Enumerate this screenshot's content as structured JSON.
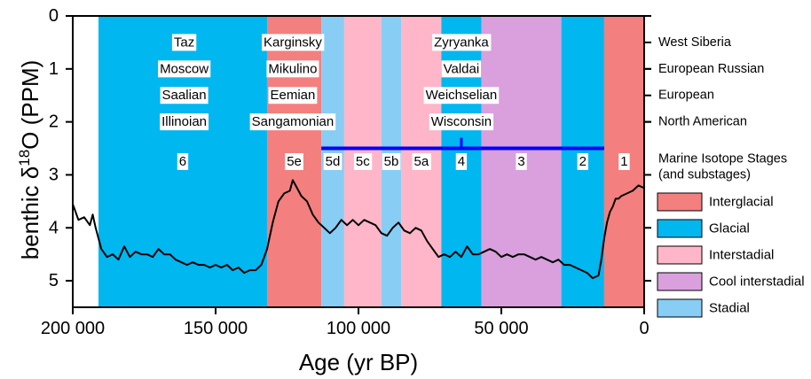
{
  "chart_data": {
    "type": "line",
    "xlabel": "Age (yr BP)",
    "ylabel_main": "benthic δ",
    "ylabel_sup": "18",
    "ylabel_rest": "O (PPM)",
    "xlim": [
      200000,
      0
    ],
    "ylim": [
      0,
      5.5
    ],
    "x_ticks": [
      {
        "value": 200000,
        "label": "200 000"
      },
      {
        "value": 150000,
        "label": "150 000"
      },
      {
        "value": 100000,
        "label": "100 000"
      },
      {
        "value": 50000,
        "label": "50 000"
      },
      {
        "value": 0,
        "label": "0"
      }
    ],
    "y_ticks": [
      {
        "value": 0,
        "label": "0"
      },
      {
        "value": 1,
        "label": "1"
      },
      {
        "value": 2,
        "label": "2"
      },
      {
        "value": 3,
        "label": "3"
      },
      {
        "value": 4,
        "label": "4"
      },
      {
        "value": 5,
        "label": "5"
      }
    ],
    "colors": {
      "interglacial": "#f47f7f",
      "glacial": "#00b7f0",
      "interstadial": "#ffb6c8",
      "cool_interstadial": "#d9a0dd",
      "stadial": "#87cdf4",
      "line": "#000000",
      "mis_bar": "#0000ff"
    },
    "bands": [
      {
        "start": 191000,
        "end": 132000,
        "kind": "glacial",
        "label": "6"
      },
      {
        "start": 132000,
        "end": 113000,
        "kind": "interglacial",
        "label": "5e"
      },
      {
        "start": 113000,
        "end": 105000,
        "kind": "stadial",
        "label": "5d"
      },
      {
        "start": 105000,
        "end": 92000,
        "kind": "interstadial",
        "label": "5c"
      },
      {
        "start": 92000,
        "end": 85000,
        "kind": "stadial",
        "label": "5b"
      },
      {
        "start": 85000,
        "end": 71000,
        "kind": "interstadial",
        "label": "5a"
      },
      {
        "start": 71000,
        "end": 57000,
        "kind": "glacial",
        "label": "4"
      },
      {
        "start": 57000,
        "end": 29000,
        "kind": "cool_interstadial",
        "label": "3"
      },
      {
        "start": 29000,
        "end": 14000,
        "kind": "glacial",
        "label": "2"
      },
      {
        "start": 14000,
        "end": 0,
        "kind": "interglacial",
        "label": "1"
      }
    ],
    "band_label_y": 2.75,
    "mis_bar": {
      "start": 113000,
      "end": 14000,
      "y": 2.5,
      "tick_x": 64000,
      "tick_top": 2.3
    },
    "stage_names": [
      {
        "x": 161000,
        "names": [
          "Taz",
          "Moscow",
          "Saalian",
          "Illinoian"
        ]
      },
      {
        "x": 123000,
        "names": [
          "Karginsky",
          "Mikulino",
          "Eemian",
          "Sangamonian"
        ]
      },
      {
        "x": 64000,
        "names": [
          "Zyryanka",
          "Valdai",
          "Weichselian",
          "Wisconsin"
        ]
      }
    ],
    "stage_rows_y": [
      0.5,
      1.0,
      1.5,
      2.0
    ],
    "right_labels": [
      {
        "y": 0.5,
        "text": "West Siberia"
      },
      {
        "y": 1.0,
        "text": "European Russian"
      },
      {
        "y": 1.5,
        "text": "European"
      },
      {
        "y": 2.0,
        "text": "North American"
      },
      {
        "y": 2.7,
        "text": "Marine Isotope Stages"
      },
      {
        "y": 3.0,
        "text": "(and substages)"
      }
    ],
    "legend": [
      {
        "kind": "interglacial",
        "label": "Interglacial"
      },
      {
        "kind": "glacial",
        "label": "Glacial"
      },
      {
        "kind": "interstadial",
        "label": "Interstadial"
      },
      {
        "kind": "cool_interstadial",
        "label": "Cool interstadial"
      },
      {
        "kind": "stadial",
        "label": "Stadial"
      }
    ],
    "series": [
      {
        "x": [
          200000,
          198000,
          196000,
          194000,
          193000,
          192000,
          191000,
          190000,
          188000,
          186000,
          184000,
          182000,
          180000,
          178000,
          176000,
          174000,
          172000,
          170000,
          168000,
          166000,
          164000,
          162000,
          160000,
          158000,
          156000,
          154000,
          152000,
          150000,
          148000,
          146000,
          144000,
          142000,
          140000,
          138000,
          136000,
          134000,
          132000,
          130000,
          128000,
          126000,
          124000,
          123000,
          122000,
          120000,
          118000,
          116000,
          114000,
          112000,
          110000,
          108000,
          106000,
          104000,
          102000,
          100000,
          98000,
          96000,
          94000,
          92000,
          90000,
          88000,
          86000,
          84000,
          82000,
          80000,
          78000,
          76000,
          74000,
          72000,
          70000,
          68000,
          66000,
          64000,
          62000,
          60000,
          58000,
          56000,
          54000,
          52000,
          50000,
          48000,
          46000,
          44000,
          42000,
          40000,
          38000,
          36000,
          34000,
          32000,
          30000,
          28000,
          26000,
          24000,
          22000,
          20000,
          18000,
          16000,
          15000,
          14000,
          13000,
          12000,
          11000,
          10000,
          9000,
          8000,
          6000,
          4000,
          2000,
          0
        ],
        "y": [
          3.55,
          3.85,
          3.8,
          3.95,
          3.75,
          4.0,
          4.2,
          4.4,
          4.55,
          4.5,
          4.6,
          4.35,
          4.55,
          4.45,
          4.5,
          4.5,
          4.55,
          4.4,
          4.5,
          4.5,
          4.6,
          4.65,
          4.7,
          4.65,
          4.7,
          4.7,
          4.75,
          4.7,
          4.75,
          4.7,
          4.8,
          4.75,
          4.85,
          4.8,
          4.8,
          4.7,
          4.4,
          3.9,
          3.5,
          3.35,
          3.3,
          3.1,
          3.2,
          3.4,
          3.5,
          3.75,
          3.9,
          4.0,
          4.1,
          4.0,
          3.85,
          3.95,
          3.85,
          3.95,
          3.85,
          3.9,
          3.95,
          4.1,
          4.15,
          4.0,
          3.9,
          4.05,
          4.1,
          4.0,
          4.05,
          4.25,
          4.4,
          4.55,
          4.5,
          4.55,
          4.45,
          4.55,
          4.35,
          4.5,
          4.5,
          4.45,
          4.4,
          4.45,
          4.55,
          4.5,
          4.55,
          4.5,
          4.5,
          4.55,
          4.6,
          4.55,
          4.6,
          4.65,
          4.6,
          4.7,
          4.7,
          4.75,
          4.8,
          4.85,
          4.95,
          4.9,
          4.6,
          4.2,
          3.9,
          3.7,
          3.6,
          3.45,
          3.45,
          3.4,
          3.35,
          3.3,
          3.2,
          3.25
        ]
      }
    ]
  }
}
